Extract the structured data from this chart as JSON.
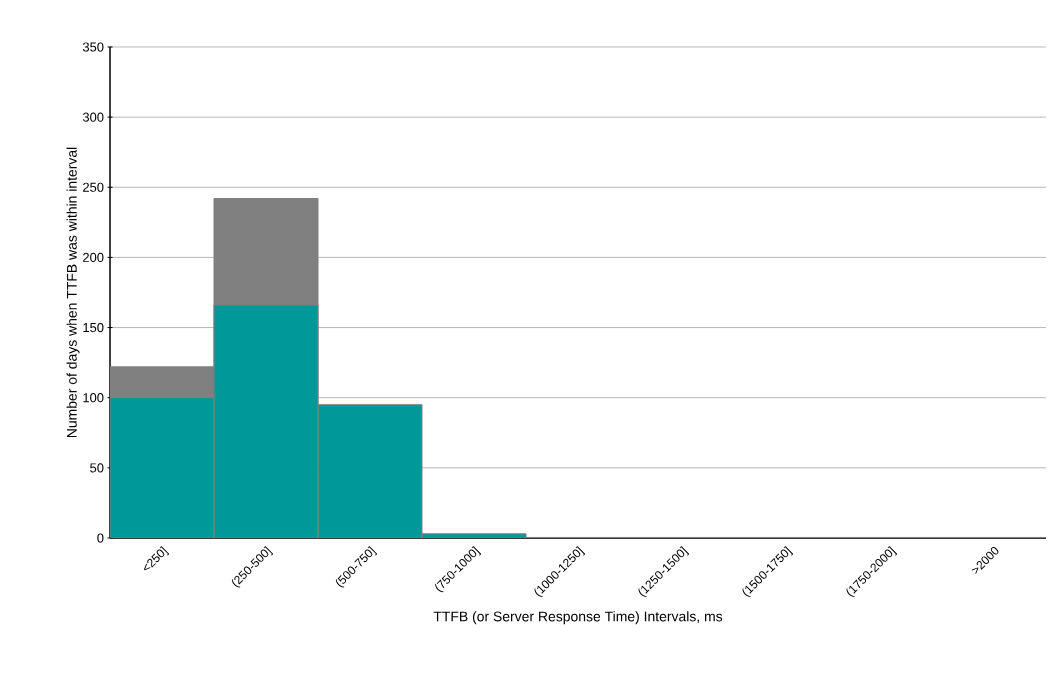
{
  "chart_data": {
    "type": "bar",
    "xlabel": "TTFB (or Server Response Time) Intervals, ms",
    "ylabel": "Number of days when TTFB was within interval",
    "categories": [
      "<250]",
      "(250-500]",
      "(500-750]",
      "(750-1000]",
      "(1000-1250]",
      "(1250-1500]",
      "(1500-1750]",
      "(1750-2000]",
      ">2000"
    ],
    "series": [
      {
        "color": "#009999",
        "values": [
          100,
          166,
          95,
          3,
          0,
          0,
          0,
          0,
          0
        ]
      },
      {
        "color": "#808080",
        "values": [
          122,
          242,
          0,
          0,
          0,
          0,
          0,
          0,
          0
        ]
      }
    ],
    "ylim": [
      0,
      350
    ],
    "yticks": [
      0,
      50,
      100,
      150,
      200,
      250,
      300,
      350
    ],
    "grid": "y"
  }
}
